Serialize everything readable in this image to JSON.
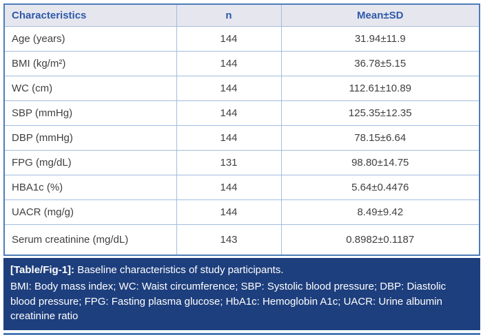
{
  "colors": {
    "header_bg": "#e6e6ef",
    "header_text": "#2e5aa8",
    "outer_border": "#4d7cb8",
    "inner_border": "#a3bcde",
    "body_text": "#3f3f3f",
    "caption_bg": "#1e3f7d",
    "caption_text": "#ffffff"
  },
  "table": {
    "headers": [
      "Characteristics",
      "n",
      "Mean±SD"
    ],
    "rows": [
      {
        "characteristic": "Age (years)",
        "n": "144",
        "mean_sd": "31.94±11.9"
      },
      {
        "characteristic": "BMI (kg/m²)",
        "n": "144",
        "mean_sd": "36.78±5.15"
      },
      {
        "characteristic": "WC (cm)",
        "n": "144",
        "mean_sd": "112.61±10.89"
      },
      {
        "characteristic": "SBP (mmHg)",
        "n": "144",
        "mean_sd": "125.35±12.35"
      },
      {
        "characteristic": "DBP (mmHg)",
        "n": "144",
        "mean_sd": "78.15±6.64"
      },
      {
        "characteristic": "FPG (mg/dL)",
        "n": "131",
        "mean_sd": "98.80±14.75"
      },
      {
        "characteristic": "HBA1c (%)",
        "n": "144",
        "mean_sd": "5.64±0.4476"
      },
      {
        "characteristic": "UACR (mg/g)",
        "n": "144",
        "mean_sd": "8.49±9.42"
      },
      {
        "characteristic": "Serum creatinine (mg/dL)",
        "n": "143",
        "mean_sd": "0.8982±0.1187"
      }
    ]
  },
  "caption": {
    "label": "[Table/Fig-1]:",
    "text": " Baseline characteristics of study participants.",
    "footnote": "BMI: Body mass index; WC: Waist circumference; SBP: Systolic blood pressure; DBP: Diastolic blood pressure; FPG: Fasting plasma glucose; HbA1c: Hemoglobin A1c; UACR: Urine albumin creatinine ratio"
  }
}
